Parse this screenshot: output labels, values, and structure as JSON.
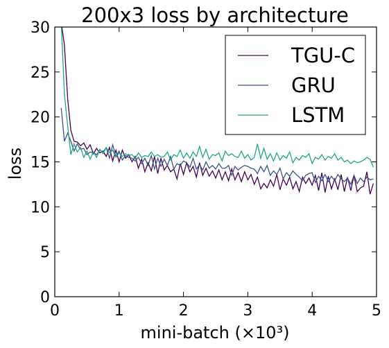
{
  "chart_data": {
    "type": "line",
    "title": "200x3 loss by architecture",
    "xlabel": "mini-batch (×10³)",
    "ylabel": "loss",
    "xlim": [
      0,
      5
    ],
    "ylim": [
      0,
      30
    ],
    "xticks": [
      0,
      1,
      2,
      3,
      4,
      5
    ],
    "yticks": [
      0,
      5,
      10,
      15,
      20,
      25,
      30
    ],
    "xtick_labels": [
      "0",
      "1",
      "2",
      "3",
      "4",
      "5"
    ],
    "ytick_labels": [
      "0",
      "5",
      "10",
      "15",
      "20",
      "25",
      "30"
    ],
    "grid": false,
    "legend_position": "top-right",
    "x": [
      0.1,
      0.15,
      0.2,
      0.25,
      0.3,
      0.35,
      0.4,
      0.45,
      0.5,
      0.55,
      0.6,
      0.65,
      0.7,
      0.75,
      0.8,
      0.85,
      0.9,
      0.95,
      1.0,
      1.05,
      1.1,
      1.15,
      1.2,
      1.25,
      1.3,
      1.35,
      1.4,
      1.45,
      1.5,
      1.55,
      1.6,
      1.65,
      1.7,
      1.75,
      1.8,
      1.85,
      1.9,
      1.95,
      2.0,
      2.05,
      2.1,
      2.15,
      2.2,
      2.25,
      2.3,
      2.35,
      2.4,
      2.45,
      2.5,
      2.55,
      2.6,
      2.65,
      2.7,
      2.75,
      2.8,
      2.85,
      2.9,
      2.95,
      3.0,
      3.05,
      3.1,
      3.15,
      3.2,
      3.25,
      3.3,
      3.35,
      3.4,
      3.45,
      3.5,
      3.55,
      3.6,
      3.65,
      3.7,
      3.75,
      3.8,
      3.85,
      3.9,
      3.95,
      4.0,
      4.05,
      4.1,
      4.15,
      4.2,
      4.25,
      4.3,
      4.35,
      4.4,
      4.45,
      4.5,
      4.55,
      4.6,
      4.65,
      4.7,
      4.75,
      4.8,
      4.85,
      4.9,
      4.95
    ],
    "series": [
      {
        "name": "TGU-C",
        "color": "#440154",
        "values": [
          30.5,
          28.0,
          22.0,
          18.5,
          17.3,
          17.2,
          16.8,
          17.1,
          16.4,
          16.9,
          15.9,
          16.5,
          16.0,
          16.2,
          15.6,
          16.6,
          15.1,
          16.3,
          15.0,
          16.3,
          15.4,
          15.8,
          15.0,
          15.6,
          14.3,
          15.3,
          13.9,
          14.9,
          14.0,
          15.6,
          13.7,
          15.4,
          14.1,
          14.6,
          13.9,
          14.2,
          13.1,
          14.8,
          13.6,
          14.9,
          13.9,
          14.5,
          13.3,
          14.9,
          13.5,
          14.3,
          13.4,
          14.0,
          13.2,
          14.1,
          13.0,
          13.9,
          12.9,
          14.2,
          13.0,
          13.8,
          12.8,
          13.9,
          13.0,
          13.6,
          12.5,
          13.3,
          12.0,
          12.6,
          12.1,
          13.0,
          12.3,
          13.6,
          11.9,
          13.1,
          12.4,
          13.3,
          12.0,
          12.8,
          11.7,
          13.3,
          12.6,
          13.2,
          12.4,
          13.5,
          11.8,
          13.8,
          11.6,
          13.4,
          12.0,
          13.1,
          11.9,
          13.6,
          11.7,
          13.3,
          11.8,
          13.5,
          11.7,
          12.1,
          12.3,
          13.9,
          11.4,
          12.6
        ]
      },
      {
        "name": "GRU",
        "color": "#3b528b",
        "values": [
          21.0,
          17.3,
          18.2,
          17.3,
          16.2,
          17.0,
          16.4,
          16.5,
          15.8,
          16.1,
          16.0,
          15.8,
          16.3,
          16.1,
          16.6,
          15.4,
          16.9,
          15.6,
          16.2,
          15.2,
          15.7,
          15.5,
          15.4,
          15.1,
          15.5,
          14.8,
          15.4,
          14.6,
          15.7,
          14.2,
          15.4,
          14.5,
          15.3,
          14.6,
          15.6,
          14.2,
          14.8,
          14.6,
          15.1,
          14.9,
          14.4,
          15.4,
          14.2,
          14.7,
          14.1,
          15.0,
          14.3,
          14.6,
          14.2,
          14.8,
          14.3,
          14.3,
          14.6,
          13.5,
          14.5,
          14.1,
          14.4,
          14.6,
          14.5,
          14.3,
          14.2,
          13.7,
          14.5,
          13.9,
          14.6,
          13.5,
          14.0,
          13.6,
          14.3,
          13.1,
          13.8,
          13.4,
          14.0,
          13.6,
          13.3,
          12.9,
          13.5,
          13.7,
          13.8,
          12.7,
          13.4,
          12.9,
          13.6,
          12.8,
          13.4,
          12.9,
          13.6,
          13.1,
          12.8,
          13.2,
          12.5,
          13.5,
          12.6,
          13.2,
          12.8,
          13.3,
          13.0,
          13.1
        ]
      },
      {
        "name": "LSTM",
        "color": "#21a685",
        "values": [
          30.5,
          22.5,
          19.0,
          15.8,
          17.0,
          16.1,
          16.6,
          15.5,
          16.2,
          15.3,
          16.1,
          15.5,
          16.4,
          15.9,
          16.6,
          16.0,
          16.3,
          15.5,
          16.0,
          15.6,
          15.9,
          15.7,
          15.8,
          15.4,
          16.0,
          15.5,
          15.7,
          15.6,
          16.1,
          15.6,
          15.8,
          15.5,
          15.6,
          16.1,
          15.2,
          15.8,
          15.6,
          16.3,
          15.4,
          16.0,
          15.4,
          16.1,
          15.6,
          16.7,
          15.5,
          16.4,
          15.3,
          15.8,
          15.7,
          16.0,
          15.1,
          16.2,
          15.7,
          15.9,
          15.6,
          15.5,
          16.2,
          15.4,
          15.8,
          15.2,
          15.5,
          17.0,
          15.4,
          16.5,
          15.3,
          15.9,
          15.1,
          16.0,
          15.2,
          15.7,
          15.4,
          16.1,
          14.9,
          15.5,
          15.2,
          15.7,
          15.5,
          15.9,
          14.8,
          15.5,
          15.3,
          15.8,
          15.2,
          15.6,
          15.4,
          15.9,
          15.2,
          15.5,
          15.0,
          15.2,
          14.8,
          15.1,
          14.9,
          15.0,
          15.2,
          15.5,
          15.3,
          14.4
        ]
      }
    ]
  }
}
